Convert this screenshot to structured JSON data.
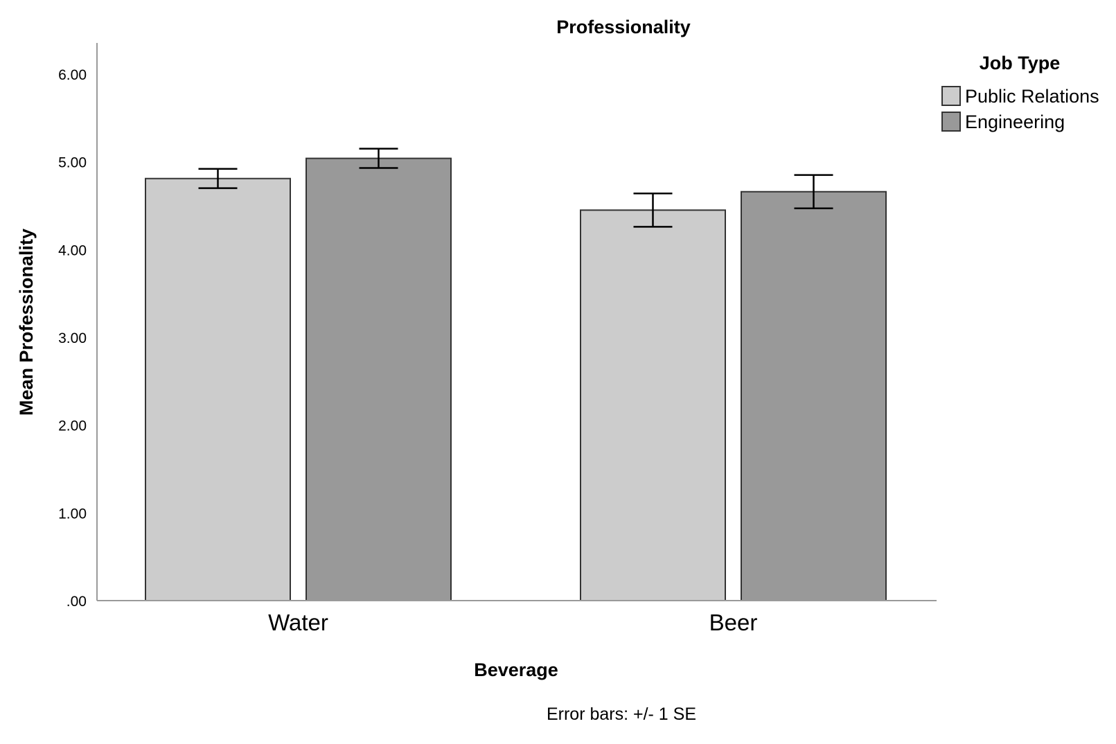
{
  "chart_data": {
    "type": "bar",
    "title": "Professionality",
    "xlabel": "Beverage",
    "ylabel": "Mean Professionality",
    "ylim": [
      0,
      6.3
    ],
    "yticks": [
      0,
      1,
      2,
      3,
      4,
      5,
      6
    ],
    "ytick_labels": [
      ".00",
      "1.00",
      "2.00",
      "3.00",
      "4.00",
      "5.00",
      "6.00"
    ],
    "categories": [
      "Water",
      "Beer"
    ],
    "series": [
      {
        "name": "Public Relations",
        "color": "#cccccc",
        "values": [
          4.81,
          4.45
        ],
        "se": [
          0.11,
          0.19
        ]
      },
      {
        "name": "Engineering",
        "color": "#999999",
        "values": [
          5.04,
          4.66
        ],
        "se": [
          0.11,
          0.19
        ]
      }
    ],
    "legend": {
      "title": "Job Type",
      "placement": "top-right"
    },
    "grid": false,
    "note": "Error bars: +/- 1 SE"
  }
}
